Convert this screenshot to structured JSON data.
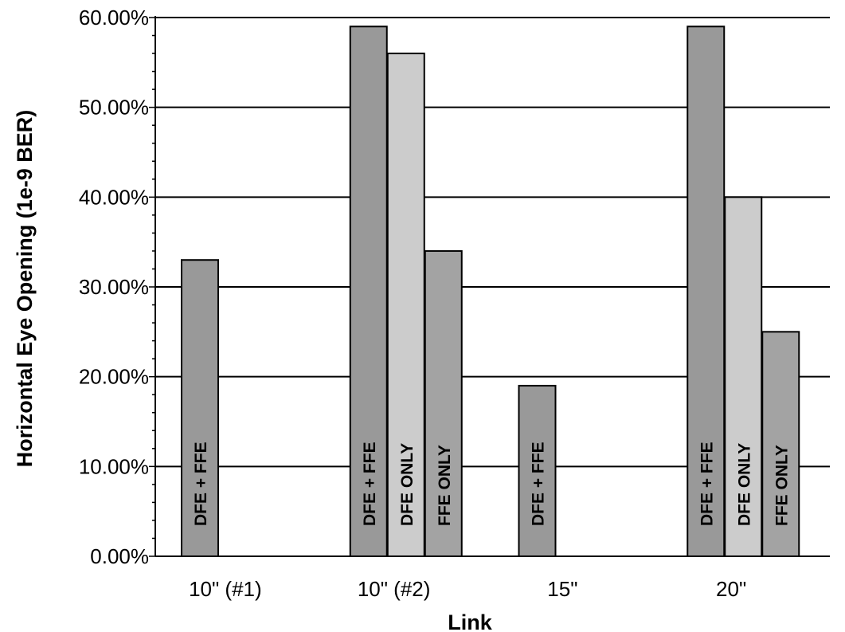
{
  "chart_data": {
    "type": "bar",
    "xlabel": "Link",
    "ylabel": "Horizontal Eye Opening (1e-9 BER)",
    "ylim": [
      0,
      0.6
    ],
    "yticks": [
      "0.00%",
      "10.00%",
      "20.00%",
      "30.00%",
      "40.00%",
      "50.00%",
      "60.00%"
    ],
    "grid": true,
    "categories": [
      "10\" (#1)",
      "10\" (#2)",
      "15\"",
      "20\""
    ],
    "series": [
      {
        "name": "DFE + FFE",
        "color": "#999999",
        "values": [
          0.33,
          0.59,
          0.19,
          0.59
        ]
      },
      {
        "name": "DFE ONLY",
        "color": "#cccccc",
        "values": [
          null,
          0.56,
          null,
          0.4
        ]
      },
      {
        "name": "FFE ONLY",
        "color": "#a3a3a3",
        "values": [
          null,
          0.34,
          null,
          0.25
        ]
      }
    ]
  }
}
